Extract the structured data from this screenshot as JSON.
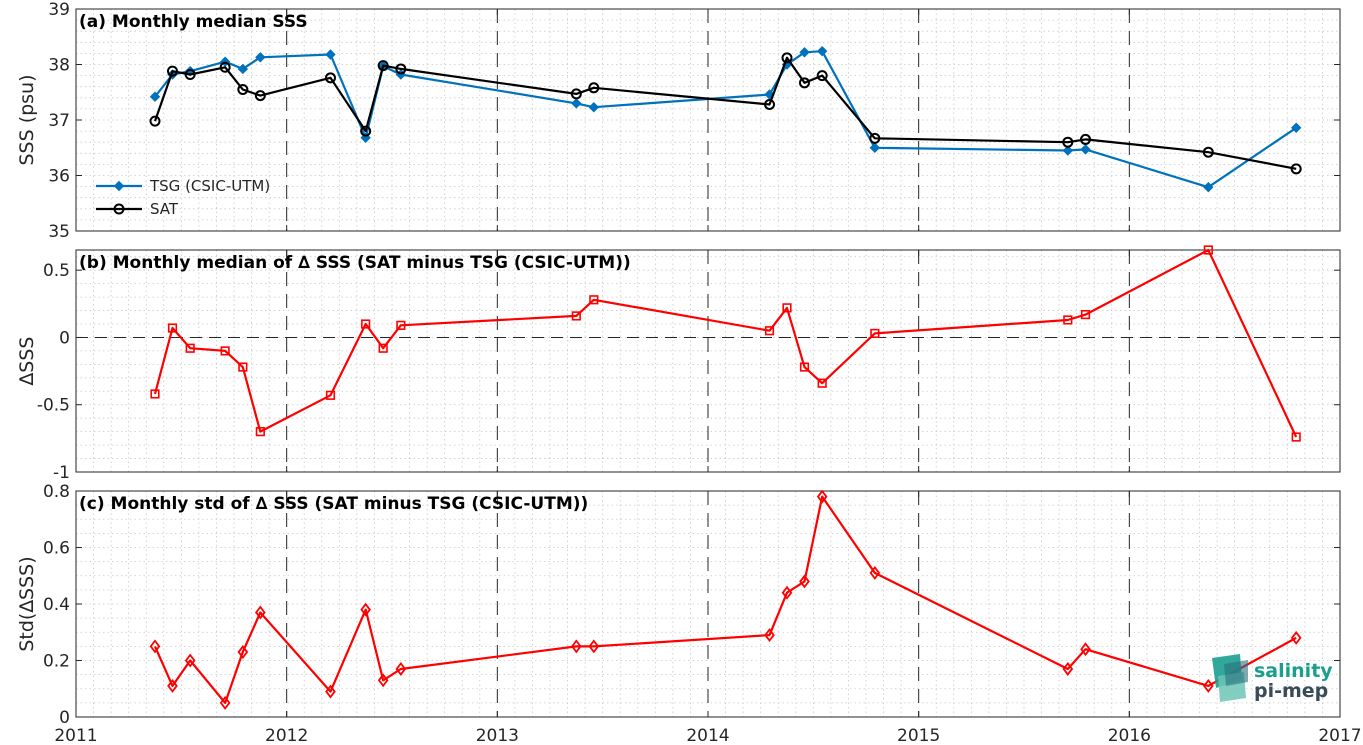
{
  "chart_data": [
    {
      "type": "line",
      "title": "(a) Monthly median SSS",
      "ylabel": "SSS (psu)",
      "xlim": [
        2011,
        2017
      ],
      "ylim": [
        35,
        39
      ],
      "yticks": [
        35,
        36,
        37,
        38,
        39
      ],
      "grid": true,
      "legend_position": "bottom-left",
      "series": [
        {
          "name": "TSG (CSIC-UTM)",
          "color": "#0072BD",
          "marker": "diamond-filled",
          "x": [
            2011.375,
            2011.458,
            2011.542,
            2011.708,
            2011.792,
            2011.875,
            2012.208,
            2012.375,
            2012.458,
            2012.542,
            2013.375,
            2013.458,
            2014.292,
            2014.375,
            2014.458,
            2014.542,
            2014.792,
            2015.708,
            2015.792,
            2016.375,
            2016.792
          ],
          "y": [
            37.42,
            37.82,
            37.88,
            38.05,
            37.92,
            38.13,
            38.18,
            36.68,
            37.97,
            37.82,
            37.3,
            37.23,
            37.46,
            38.0,
            38.22,
            38.24,
            36.5,
            36.45,
            36.47,
            35.79,
            36.86
          ]
        },
        {
          "name": "SAT",
          "color": "#000000",
          "marker": "circle-open",
          "x": [
            2011.375,
            2011.458,
            2011.542,
            2011.708,
            2011.792,
            2011.875,
            2012.208,
            2012.375,
            2012.458,
            2012.542,
            2013.375,
            2013.458,
            2014.292,
            2014.375,
            2014.458,
            2014.542,
            2014.792,
            2015.708,
            2015.792,
            2016.375,
            2016.792
          ],
          "y": [
            36.98,
            37.88,
            37.82,
            37.95,
            37.55,
            37.44,
            37.76,
            36.8,
            37.98,
            37.92,
            37.47,
            37.58,
            37.28,
            38.12,
            37.67,
            37.8,
            36.67,
            36.6,
            36.65,
            36.42,
            36.12
          ]
        }
      ]
    },
    {
      "type": "line",
      "title": "(b) Monthly median of ∆ SSS (SAT minus TSG (CSIC-UTM))",
      "ylabel": "∆SSS",
      "xlim": [
        2011,
        2017
      ],
      "ylim": [
        -1,
        0.65
      ],
      "yticks": [
        -1,
        -0.5,
        0,
        0.5
      ],
      "ytick_labels": [
        "-1",
        "-0.5",
        "0",
        "0.5"
      ],
      "zero_line": "dashed",
      "grid": true,
      "series": [
        {
          "color": "#FF0000",
          "marker": "square-open",
          "x": [
            2011.375,
            2011.458,
            2011.542,
            2011.708,
            2011.792,
            2011.875,
            2012.208,
            2012.375,
            2012.458,
            2012.542,
            2013.375,
            2013.458,
            2014.292,
            2014.375,
            2014.458,
            2014.542,
            2014.792,
            2015.708,
            2015.792,
            2016.375,
            2016.792
          ],
          "y": [
            -0.42,
            0.07,
            -0.08,
            -0.1,
            -0.22,
            -0.7,
            -0.43,
            0.1,
            -0.08,
            0.09,
            0.16,
            0.28,
            0.05,
            0.22,
            -0.22,
            -0.34,
            0.03,
            0.13,
            0.17,
            0.65,
            -0.74
          ]
        }
      ]
    },
    {
      "type": "line",
      "title": "(c) Monthly std of ∆ SSS (SAT minus TSG (CSIC-UTM))",
      "ylabel": "Std(∆SSS)",
      "xlim": [
        2011,
        2017
      ],
      "ylim": [
        0,
        0.8
      ],
      "yticks": [
        0,
        0.2,
        0.4,
        0.6,
        0.8
      ],
      "ytick_labels": [
        "0",
        "0.2",
        "0.4",
        "0.6",
        "0.8"
      ],
      "xticks": [
        2011,
        2012,
        2013,
        2014,
        2015,
        2016,
        2017
      ],
      "xtick_labels": [
        "2011",
        "2012",
        "2013",
        "2014",
        "2015",
        "2016",
        "2017"
      ],
      "grid": true,
      "series": [
        {
          "color": "#FF0000",
          "marker": "diamond-open",
          "x": [
            2011.375,
            2011.458,
            2011.542,
            2011.708,
            2011.792,
            2011.875,
            2012.208,
            2012.375,
            2012.458,
            2012.542,
            2013.375,
            2013.458,
            2014.292,
            2014.375,
            2014.458,
            2014.542,
            2014.792,
            2015.708,
            2015.792,
            2016.375,
            2016.792
          ],
          "y": [
            0.25,
            0.11,
            0.2,
            0.05,
            0.23,
            0.37,
            0.09,
            0.38,
            0.13,
            0.17,
            0.25,
            0.25,
            0.29,
            0.44,
            0.48,
            0.78,
            0.51,
            0.17,
            0.24,
            0.11,
            0.28
          ]
        }
      ]
    }
  ],
  "logo": {
    "line1": "salinity",
    "line2": "pi-mep"
  }
}
